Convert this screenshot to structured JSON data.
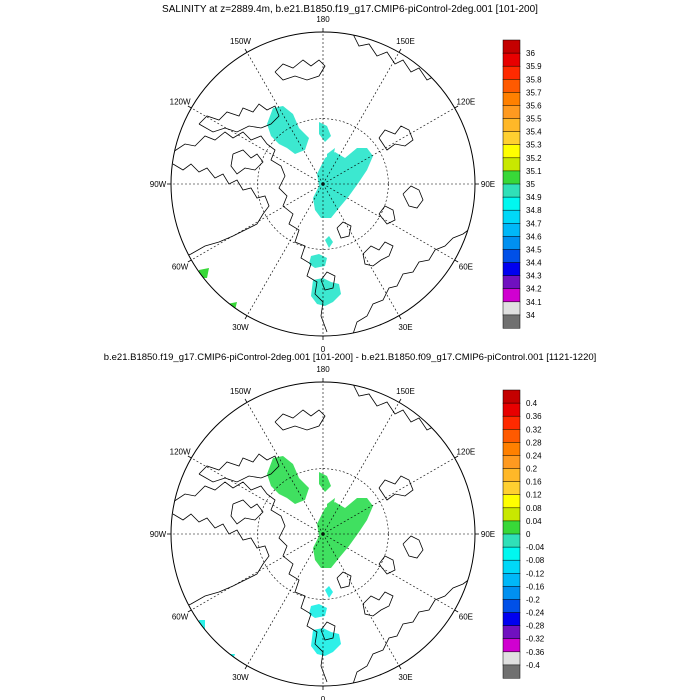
{
  "panels": [
    {
      "title": "SALINITY at z=2889.4m, b.e21.B1850.f19_g17.CMIP6-piControl-2deg.001 [101-200]",
      "lon_labels": {
        "top": "180",
        "bottom": "0",
        "left": "90W",
        "right": "90E",
        "upper_left_1": "150W",
        "upper_left_2": "120W",
        "upper_right_1": "150E",
        "upper_right_2": "120E",
        "lower_left_1": "60W",
        "lower_left_2": "30W",
        "lower_right_1": "60E",
        "lower_right_2": "30E"
      },
      "colorbar": {
        "labels": [
          "36",
          "35.9",
          "35.8",
          "35.7",
          "35.6",
          "35.5",
          "35.4",
          "35.3",
          "35.2",
          "35.1",
          "35",
          "34.9",
          "34.8",
          "34.7",
          "34.6",
          "34.5",
          "34.4",
          "34.3",
          "34.2",
          "34.1",
          "34"
        ],
        "colors": [
          "#c40000",
          "#e80000",
          "#ff2a00",
          "#ff5a00",
          "#ff8000",
          "#ff9a20",
          "#ffb828",
          "#ffd030",
          "#ffff00",
          "#c8e800",
          "#38d838",
          "#30e0b8",
          "#00f8f0",
          "#00d8f8",
          "#00b8f8",
          "#0090f0",
          "#0050e8",
          "#0000f0",
          "#7010c0",
          "#d000d0",
          "#e0e0e0",
          "#707070"
        ]
      },
      "field_color": "#3ce8d0"
    },
    {
      "title": "b.e21.B1850.f19_g17.CMIP6-piControl-2deg.001 [101-200] - b.e21.B1850.f09_g17.CMIP6-piControl.001 [1121-1220]",
      "lon_labels": {
        "top": "180",
        "bottom": "0",
        "left": "90W",
        "right": "90E",
        "upper_left_1": "150W",
        "upper_left_2": "120W",
        "upper_right_1": "150E",
        "upper_right_2": "120E",
        "lower_left_1": "60W",
        "lower_left_2": "30W",
        "lower_right_1": "60E",
        "lower_right_2": "30E"
      },
      "colorbar": {
        "labels": [
          "0.4",
          "0.36",
          "0.32",
          "0.28",
          "0.24",
          "0.2",
          "0.16",
          "0.12",
          "0.08",
          "0.04",
          "0",
          "-0.04",
          "-0.08",
          "-0.12",
          "-0.16",
          "-0.2",
          "-0.24",
          "-0.28",
          "-0.32",
          "-0.36",
          "-0.4"
        ],
        "colors": [
          "#c40000",
          "#e80000",
          "#ff2a00",
          "#ff5a00",
          "#ff8000",
          "#ff9a20",
          "#ffb828",
          "#ffd030",
          "#ffff00",
          "#c8e800",
          "#38d838",
          "#30e0b8",
          "#00f8f0",
          "#00d8f8",
          "#00b8f8",
          "#0090f0",
          "#0050e8",
          "#0000f0",
          "#7010c0",
          "#d000d0",
          "#e0e0e0",
          "#707070"
        ]
      },
      "field_color": "#40e060",
      "field_color_negative": "#2ef0e8"
    }
  ]
}
